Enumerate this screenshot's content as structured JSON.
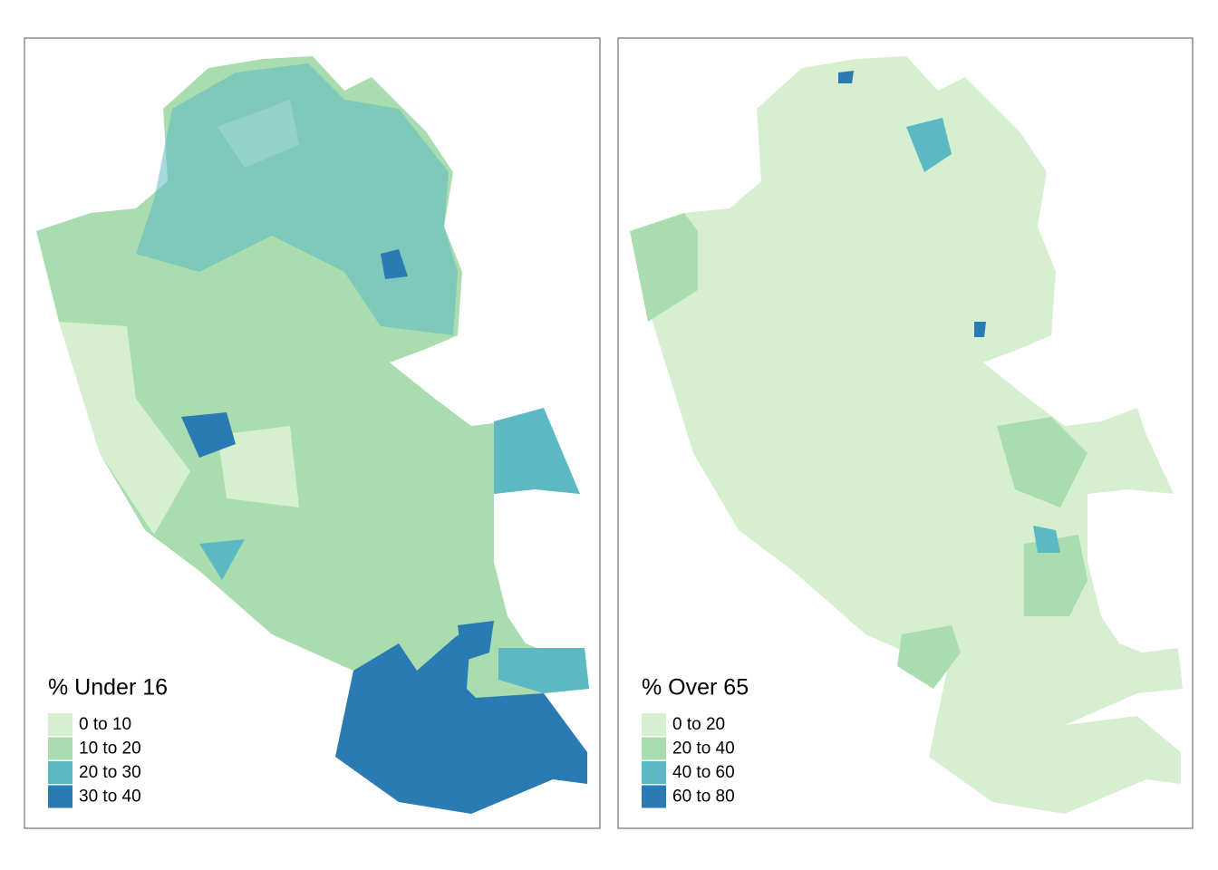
{
  "panels": [
    {
      "legend": {
        "title": "% Under 16",
        "classes": [
          {
            "label": "0 to 10",
            "color": "#d6efd0"
          },
          {
            "label": "10 to 20",
            "color": "#a9ddb0"
          },
          {
            "label": "20 to 30",
            "color": "#5cb8c2"
          },
          {
            "label": "30 to 40",
            "color": "#2a7ab3"
          }
        ]
      }
    },
    {
      "legend": {
        "title": "% Over 65",
        "classes": [
          {
            "label": "0 to 20",
            "color": "#d6efd0"
          },
          {
            "label": "20 to 40",
            "color": "#a9ddb0"
          },
          {
            "label": "40 to 60",
            "color": "#5cb8c2"
          },
          {
            "label": "60 to 80",
            "color": "#2a7ab3"
          }
        ]
      }
    }
  ]
}
